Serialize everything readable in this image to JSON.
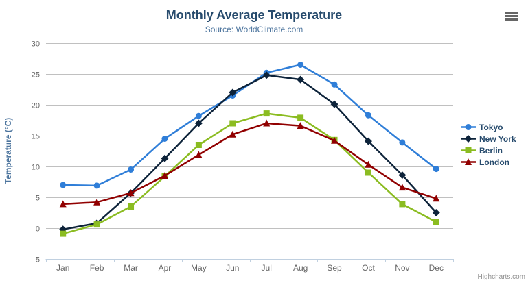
{
  "chart": {
    "title": "Monthly Average Temperature",
    "subtitle": "Source: WorldClimate.com",
    "y_axis_title": "Temperature (°C)",
    "credits": "Highcharts.com"
  },
  "icons": {
    "export_menu": "hamburger-icon"
  },
  "colors": {
    "title": "#274b6d",
    "subtitle": "#4d759e",
    "axis_title": "#4d759e",
    "axis_labels": "#666666",
    "grid_line": "#c0c0c0",
    "axis_line": "#c0d0e0",
    "legend_text": "#274b6d",
    "credits_text": "#909090",
    "background": "#ffffff"
  },
  "chart_data": {
    "type": "line",
    "title": "Monthly Average Temperature",
    "subtitle": "Source: WorldClimate.com",
    "xlabel": "",
    "ylabel": "Temperature (°C)",
    "ylim": [
      -5,
      30
    ],
    "y_tick_interval": 5,
    "grid": true,
    "legend_position": "right",
    "categories": [
      "Jan",
      "Feb",
      "Mar",
      "Apr",
      "May",
      "Jun",
      "Jul",
      "Aug",
      "Sep",
      "Oct",
      "Nov",
      "Dec"
    ],
    "series": [
      {
        "name": "Tokyo",
        "color": "#2f7ed8",
        "marker": "circle",
        "values": [
          7.0,
          6.9,
          9.5,
          14.5,
          18.2,
          21.5,
          25.2,
          26.5,
          23.3,
          18.3,
          13.9,
          9.6
        ]
      },
      {
        "name": "New York",
        "color": "#0d233a",
        "marker": "diamond",
        "values": [
          -0.2,
          0.8,
          5.7,
          11.3,
          17.0,
          22.0,
          24.8,
          24.1,
          20.1,
          14.1,
          8.6,
          2.5
        ]
      },
      {
        "name": "Berlin",
        "color": "#8bbc21",
        "marker": "square",
        "values": [
          -0.9,
          0.6,
          3.5,
          8.4,
          13.5,
          17.0,
          18.6,
          17.9,
          14.3,
          9.0,
          3.9,
          1.0
        ]
      },
      {
        "name": "London",
        "color": "#910000",
        "marker": "triangle",
        "values": [
          3.9,
          4.2,
          5.7,
          8.5,
          11.9,
          15.2,
          17.0,
          16.6,
          14.2,
          10.3,
          6.6,
          4.8
        ]
      }
    ]
  }
}
